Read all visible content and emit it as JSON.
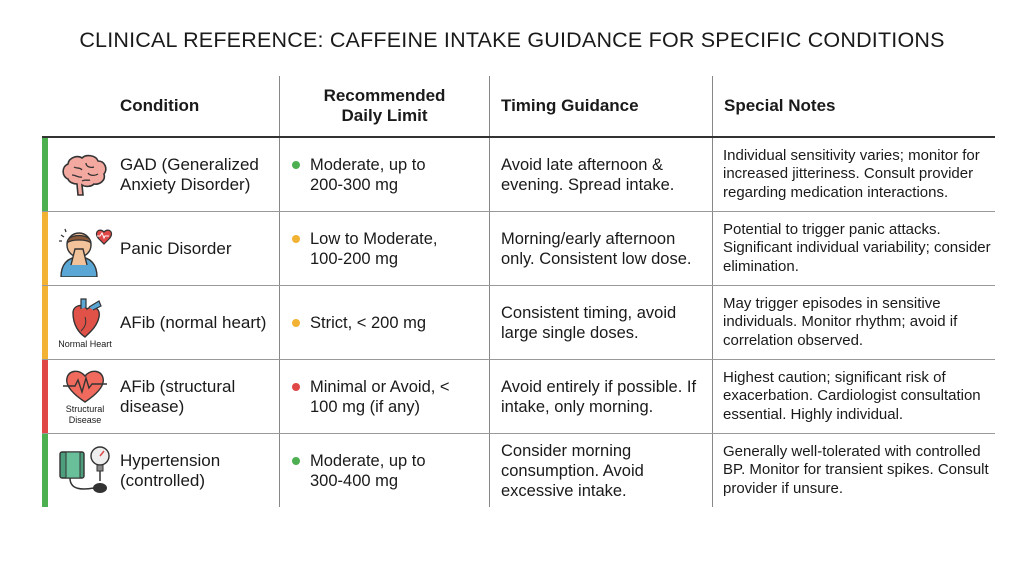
{
  "title": "CLINICAL REFERENCE: CAFFEINE INTAKE GUIDANCE FOR SPECIFIC CONDITIONS",
  "headers": [
    "Condition",
    "Recommended Daily Limit",
    "Timing Guidance",
    "Special Notes"
  ],
  "colors": {
    "green": "#4caf50",
    "orange": "#f2b233",
    "red": "#e04848"
  },
  "rows": [
    {
      "condition": "GAD (Generalized Anxiety Disorder)",
      "icon": "brain-icon",
      "icon_label": "",
      "bar_color": "#4caf50",
      "limit": "Moderate, up to 200-300 mg",
      "dot_color": "#4caf50",
      "timing": "Avoid late afternoon & evening. Spread intake.",
      "notes": "Individual sensitivity varies; monitor for increased jitteriness. Consult provider regarding medication interactions."
    },
    {
      "condition": "Panic Disorder",
      "icon": "panic-person-icon",
      "icon_label": "",
      "bar_color": "#f2b233",
      "limit": "Low to Moderate, 100-200 mg",
      "dot_color": "#f2b233",
      "timing": "Morning/early afternoon only. Consistent low dose.",
      "notes": "Potential to trigger panic attacks. Significant individual variability; consider elimination."
    },
    {
      "condition": "AFib (normal heart)",
      "icon": "heart-icon",
      "icon_label": "Normal Heart",
      "bar_color": "#f2b233",
      "limit": "Strict, < 200 mg",
      "dot_color": "#f2b233",
      "timing": "Consistent timing, avoid large single doses.",
      "notes": "May trigger episodes in sensitive individuals. Monitor rhythm; avoid if correlation observed."
    },
    {
      "condition": "AFib (structural disease)",
      "icon": "heart-ecg-icon",
      "icon_label": "Structural Disease",
      "bar_color": "#e04848",
      "limit": "Minimal or Avoid, < 100 mg (if any)",
      "dot_color": "#e04848",
      "timing": "Avoid entirely if possible. If intake, only morning.",
      "notes": "Highest caution; significant risk of exacerbation. Cardiologist consultation essential. Highly individual."
    },
    {
      "condition": "Hypertension (controlled)",
      "icon": "blood-pressure-icon",
      "icon_label": "",
      "bar_color": "#4caf50",
      "limit": "Moderate, up to 300-400 mg",
      "dot_color": "#4caf50",
      "timing": "Consider morning consumption. Avoid excessive intake.",
      "notes": "Generally well-tolerated with controlled BP. Monitor for transient spikes. Consult provider if unsure."
    }
  ]
}
